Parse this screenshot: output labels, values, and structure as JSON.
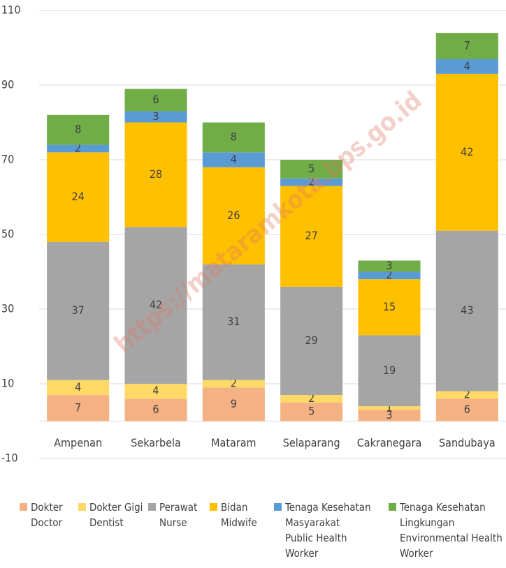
{
  "chart_data": {
    "type": "stacked_bar",
    "categories": [
      "Ampenan",
      "Sekarbela",
      "Mataram",
      "Selaparang",
      "Cakranegara",
      "Sandubaya"
    ],
    "series": [
      {
        "name": "Dokter\nDoctor",
        "color": "#f4b183",
        "values": [
          7,
          6,
          9,
          5,
          3,
          6
        ]
      },
      {
        "name": "Dokter Gigi\nDentist",
        "color": "#ffd966",
        "values": [
          4,
          4,
          2,
          2,
          1,
          2
        ]
      },
      {
        "name": "Perawat\nNurse",
        "color": "#a5a5a5",
        "values": [
          37,
          42,
          31,
          29,
          19,
          43
        ]
      },
      {
        "name": "Bidan\nMidwife",
        "color": "#ffc000",
        "values": [
          24,
          28,
          26,
          27,
          15,
          42
        ]
      },
      {
        "name": "Tenaga Kesehatan\nMasyarakat\n Public Health\nWorker",
        "color": "#5b9bd5",
        "values": [
          2,
          3,
          4,
          2,
          2,
          4
        ]
      },
      {
        "name": "Tenaga Kesehatan\nLingkungan\n Environmental Health\nWorker",
        "color": "#70ad47",
        "values": [
          8,
          6,
          8,
          5,
          3,
          7
        ]
      }
    ],
    "ylim": [
      -10,
      110
    ],
    "yticks": [
      -10,
      10,
      30,
      50,
      70,
      90,
      110
    ],
    "grid": true,
    "watermark": "https://mataramkota.bps.go.id"
  }
}
